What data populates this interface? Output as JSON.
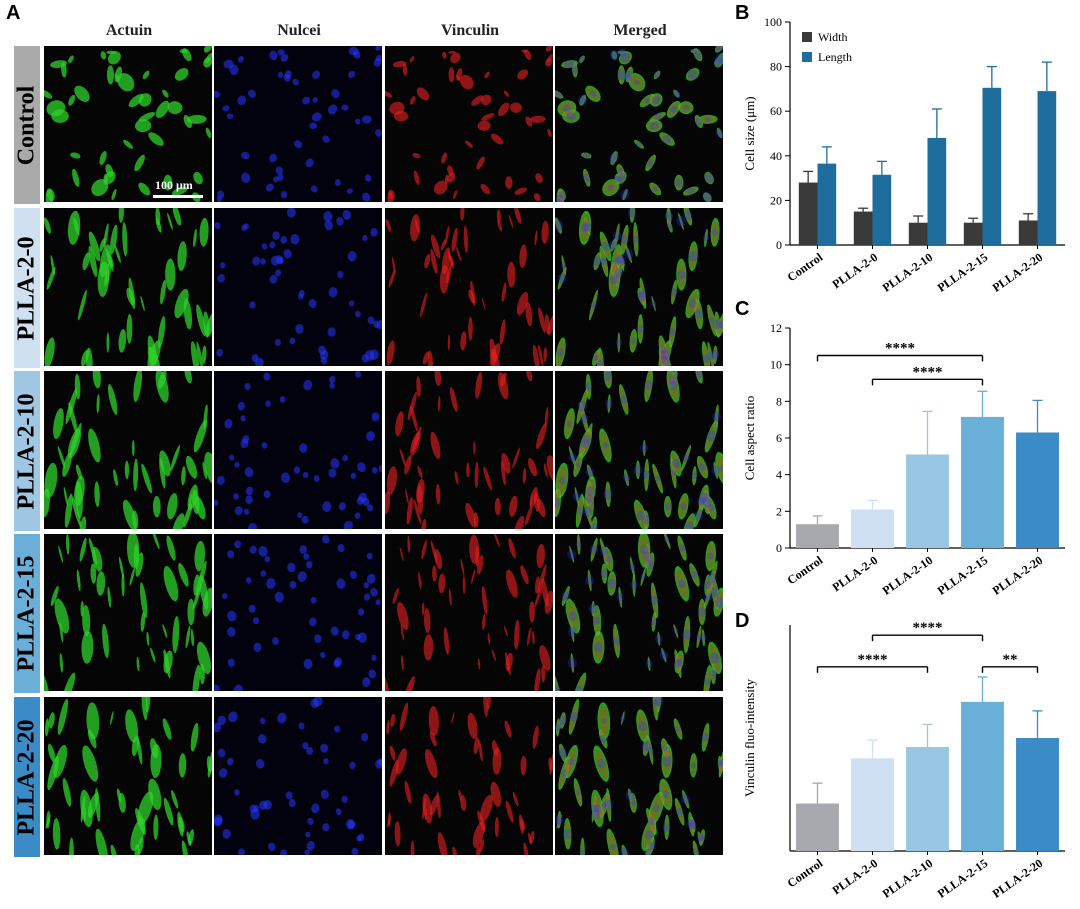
{
  "panel_labels": [
    "A",
    "B",
    "C",
    "D"
  ],
  "microscopy": {
    "columns": [
      "Actuin",
      "Nulcei",
      "Vinculin",
      "Merged"
    ],
    "rows": [
      "Control",
      "PLLA-2-0",
      "PLLA-2-10",
      "PLLA-2-15",
      "PLLA-2-20"
    ],
    "scale_bar_label": "100 μm",
    "row_label_colors": [
      "#aaaaaa",
      "#cfe0f1",
      "#9fc7e3",
      "#6bafd8",
      "#3b8bc6"
    ],
    "channel_colors": [
      "#2ed12a",
      "#2636ff",
      "#e8201f"
    ]
  },
  "chart_data": [
    {
      "type": "bar",
      "panel": "B",
      "categories": [
        "Control",
        "PLLA-2-0",
        "PLLA-2-10",
        "PLLA-2-15",
        "PLLA-2-20"
      ],
      "series": [
        {
          "name": "Width",
          "values": [
            28,
            15,
            10,
            10,
            11
          ],
          "errors": [
            5,
            1.5,
            3,
            2,
            3
          ],
          "color": "#3a3a3a"
        },
        {
          "name": "Length",
          "values": [
            36.5,
            31.5,
            48,
            70.5,
            69
          ],
          "errors": [
            7.5,
            6,
            13,
            9.5,
            13
          ],
          "color": "#1f6d9c"
        }
      ],
      "xlabel": "",
      "ylabel": "Cell size (μm)",
      "ylim": [
        0,
        100
      ],
      "yticks": [
        0,
        20,
        40,
        60,
        80,
        100
      ],
      "legend_position": "top-left"
    },
    {
      "type": "bar",
      "panel": "C",
      "categories": [
        "Control",
        "PLLA-2-0",
        "PLLA-2-10",
        "PLLA-2-15",
        "PLLA-2-20"
      ],
      "values": [
        1.3,
        2.1,
        5.1,
        7.15,
        6.3
      ],
      "errors": [
        0.45,
        0.5,
        2.35,
        1.4,
        1.75
      ],
      "colors": [
        "#a7a9ae",
        "#cfe0f2",
        "#99c6e2",
        "#6aafd8",
        "#3b8bc7"
      ],
      "xlabel": "",
      "ylabel": "Cell aspect ratio",
      "ylim": [
        0,
        12
      ],
      "yticks": [
        0,
        2,
        4,
        6,
        8,
        10,
        12
      ],
      "annotations": [
        {
          "from": 0,
          "to": 3,
          "label": "****",
          "y": 10.5
        },
        {
          "from": 1,
          "to": 3,
          "label": "****",
          "y": 9.2
        }
      ]
    },
    {
      "type": "bar",
      "panel": "D",
      "categories": [
        "Control",
        "PLLA-2-0",
        "PLLA-2-10",
        "PLLA-2-15",
        "PLLA-2-20"
      ],
      "values": [
        0.21,
        0.41,
        0.46,
        0.66,
        0.5
      ],
      "errors": [
        0.09,
        0.08,
        0.1,
        0.11,
        0.12
      ],
      "colors": [
        "#a7a9ae",
        "#cfe0f2",
        "#99c6e2",
        "#6aafd8",
        "#3b8bc7"
      ],
      "xlabel": "",
      "ylabel": "Vinculin fluo-intensity",
      "ylim": [
        0,
        1
      ],
      "yticks": [],
      "annotations": [
        {
          "from": 0,
          "to": 2,
          "label": "****",
          "y": 0.815
        },
        {
          "from": 1,
          "to": 3,
          "label": "****",
          "y": 0.955
        },
        {
          "from": 3,
          "to": 4,
          "label": "**",
          "y": 0.815
        }
      ]
    }
  ]
}
